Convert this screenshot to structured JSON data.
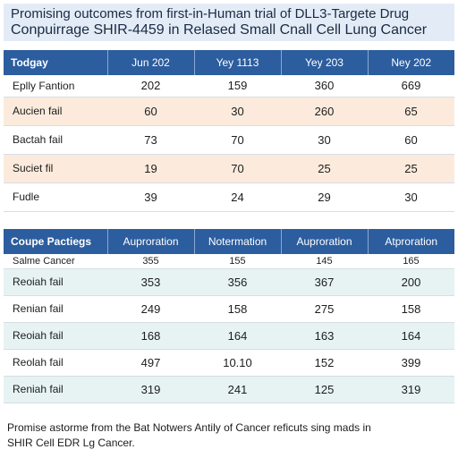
{
  "title": {
    "line1": "Promising outcomes from first-in-Human trial of DLL3-Targete Drug",
    "line2": "Conpuirrage SHIR-4459 in Relased Small Cnall Cell Lung Cancer"
  },
  "table1": {
    "headers": [
      "Todgay",
      "Jun 202",
      "Yey 1113",
      "Yey 203",
      "Ney 202"
    ],
    "rows": [
      {
        "label": "Eplly Fantion",
        "values": [
          "202",
          "159",
          "360",
          "669"
        ]
      },
      {
        "label": "Aucien fail",
        "values": [
          "60",
          "30",
          "260",
          "65"
        ]
      },
      {
        "label": "Bactah fail",
        "values": [
          "73",
          "70",
          "30",
          "60"
        ]
      },
      {
        "label": "Suciet fil",
        "values": [
          "19",
          "70",
          "25",
          "25"
        ]
      },
      {
        "label": "Fudle",
        "values": [
          "39",
          "24",
          "29",
          "30"
        ]
      }
    ]
  },
  "table2": {
    "headers": [
      "Coupe Pactiegs",
      "Auproration",
      "Notermation",
      "Auproration",
      "Atproration"
    ],
    "rows": [
      {
        "label": "Salme Cancer",
        "values": [
          "355",
          "155",
          "145",
          "165"
        ]
      },
      {
        "label": "Reoiah fail",
        "values": [
          "353",
          "356",
          "367",
          "200"
        ]
      },
      {
        "label": "Renian fail",
        "values": [
          "249",
          "158",
          "275",
          "158"
        ]
      },
      {
        "label": "Reoiah fail",
        "values": [
          "168",
          "164",
          "163",
          "164"
        ]
      },
      {
        "label": "Reolah fail",
        "values": [
          "497",
          "10.10",
          "152",
          "399"
        ]
      },
      {
        "label": "Reniah fail",
        "values": [
          "319",
          "241",
          "125",
          "319"
        ]
      }
    ]
  },
  "footnote": {
    "line1": "Promise astorme from the Bat Notwers Antily of Cancer reficuts sing mads in",
    "line2": "SHIR Cell EDR Lg Cancer."
  }
}
